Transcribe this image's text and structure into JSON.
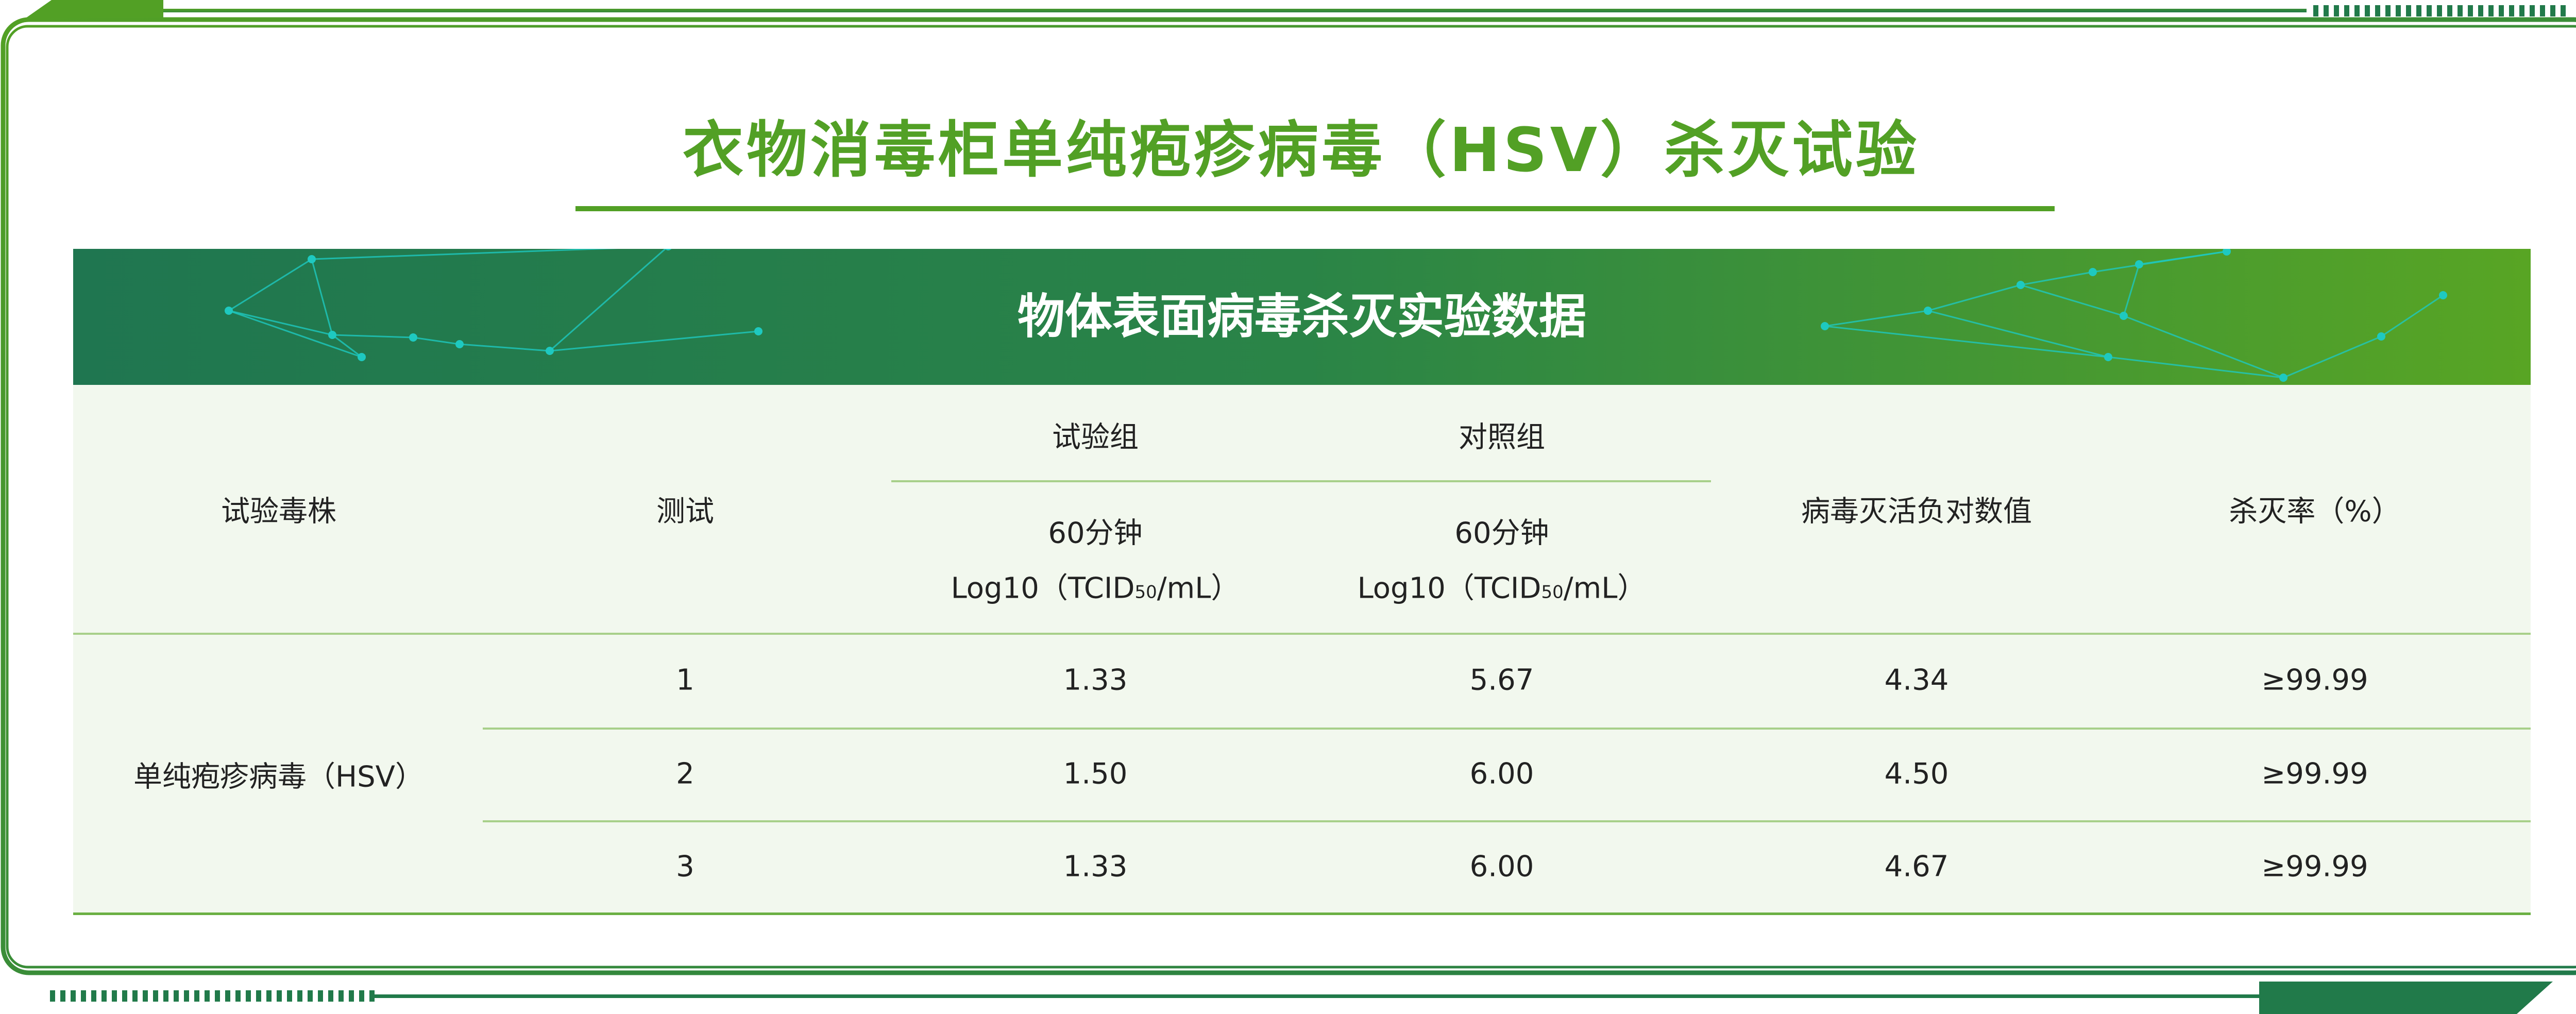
{
  "title": "衣物消毒柜单纯疱疹病毒（HSV）杀灭试验",
  "banner": "物体表面病毒杀灭实验数据",
  "colors": {
    "accent_light": "#52a025",
    "accent_dark": "#217a4a",
    "table_bg": "#f2f8ee",
    "node": "#1ec9c0"
  },
  "table": {
    "headers": {
      "strain": "试验毒株",
      "test": "测试",
      "test_group": "试验组",
      "control_group": "对照组",
      "time": "60分钟",
      "unit_prefix": "Log10（TCID",
      "unit_sub": "50",
      "unit_suffix": "/mL）",
      "log_reduction": "病毒灭活负对数值",
      "kill_rate": "杀灭率（%）"
    },
    "strain": "单纯疱疹病毒（HSV）",
    "rows": [
      {
        "test": "1",
        "test_group": "1.33",
        "control_group": "5.67",
        "log_reduction": "4.34",
        "kill_rate": "≥99.99"
      },
      {
        "test": "2",
        "test_group": "1.50",
        "control_group": "6.00",
        "log_reduction": "4.50",
        "kill_rate": "≥99.99"
      },
      {
        "test": "3",
        "test_group": "1.33",
        "control_group": "6.00",
        "log_reduction": "4.67",
        "kill_rate": "≥99.99"
      }
    ]
  }
}
